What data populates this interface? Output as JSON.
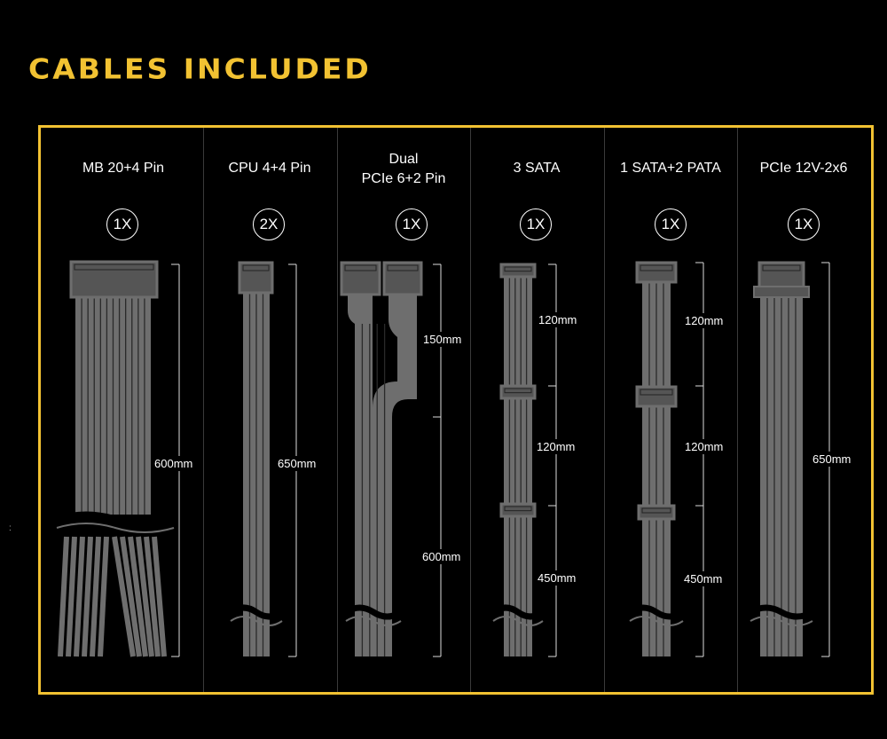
{
  "title": "CABLES INCLUDED",
  "colors": {
    "accent": "#f2c232",
    "cable": "#6e6e6e",
    "background": "#000000"
  },
  "cables": [
    {
      "name": "MB 20+4 Pin",
      "name_line2": "",
      "quantity": "1X",
      "connector": "atx-24pin",
      "lengths": [
        "600mm"
      ]
    },
    {
      "name": "CPU 4+4 Pin",
      "name_line2": "",
      "quantity": "2X",
      "connector": "eps-8pin",
      "lengths": [
        "650mm"
      ]
    },
    {
      "name": "Dual",
      "name_line2": "PCIe 6+2 Pin",
      "quantity": "1X",
      "connector": "pcie-6+2pin-dual",
      "lengths": [
        "150mm",
        "600mm"
      ]
    },
    {
      "name": "3 SATA",
      "name_line2": "",
      "quantity": "1X",
      "connector": "sata",
      "lengths": [
        "120mm",
        "120mm",
        "450mm"
      ]
    },
    {
      "name": "1 SATA+2 PATA",
      "name_line2": "",
      "quantity": "1X",
      "connector": "molex-pata",
      "lengths": [
        "120mm",
        "120mm",
        "450mm"
      ]
    },
    {
      "name": "PCIe 12V-2x6",
      "name_line2": "",
      "quantity": "1X",
      "connector": "12v-2x6",
      "lengths": [
        "650mm"
      ]
    }
  ]
}
